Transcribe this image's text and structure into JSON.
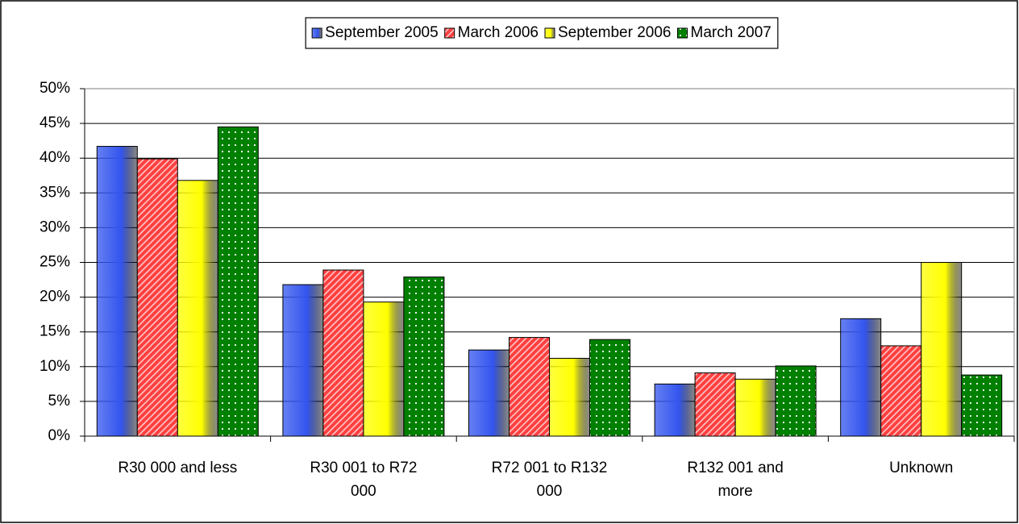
{
  "chart_data": {
    "type": "bar",
    "categories": [
      "R30 000 and less",
      "R30 001 to R72 000",
      "R72 001 to R132 000",
      "R132 001 and more",
      "Unknown"
    ],
    "series": [
      {
        "name": "September 2005",
        "color": "#3355ee",
        "fill_style": "gradient",
        "values": [
          41.7,
          21.8,
          12.4,
          7.5,
          16.9
        ]
      },
      {
        "name": "March 2006",
        "color": "#ff4040",
        "fill_style": "hatch",
        "values": [
          39.9,
          23.9,
          14.2,
          9.1,
          13.0
        ]
      },
      {
        "name": "September 2006",
        "color": "#ffff00",
        "fill_style": "gradient",
        "values": [
          36.8,
          19.3,
          11.2,
          8.2,
          25.0
        ]
      },
      {
        "name": "March 2007",
        "color": "#008000",
        "fill_style": "dots",
        "values": [
          44.5,
          22.9,
          13.9,
          10.1,
          8.8
        ]
      }
    ],
    "ylim": [
      0,
      50
    ],
    "yticks": [
      {
        "value": 0,
        "label": "0%"
      },
      {
        "value": 5,
        "label": "5%"
      },
      {
        "value": 10,
        "label": "10%"
      },
      {
        "value": 15,
        "label": "15%"
      },
      {
        "value": 20,
        "label": "20%"
      },
      {
        "value": 25,
        "label": "25%"
      },
      {
        "value": 30,
        "label": "30%"
      },
      {
        "value": 35,
        "label": "35%"
      },
      {
        "value": 40,
        "label": "40%"
      },
      {
        "value": 45,
        "label": "45%"
      },
      {
        "value": 50,
        "label": "50%"
      }
    ],
    "grid": true,
    "legend": "top"
  }
}
